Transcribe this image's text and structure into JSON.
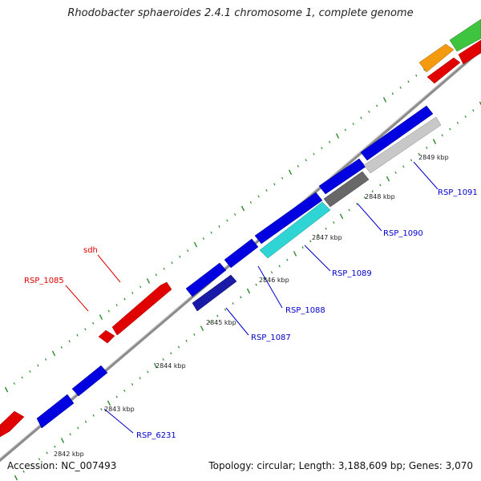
{
  "title": "Rhodobacter sphaeroides 2.4.1 chromosome 1, complete genome",
  "accession": "Accession: NC_007493",
  "summary": "Topology: circular; Length: 3,188,609 bp; Genes: 3,070",
  "colors": {
    "forward_gene": "#0000e0",
    "reverse_gene": "#e00000",
    "label_forward": "#0000cc",
    "label_reverse": "#dd0000",
    "backbone": "#8c8c8c",
    "tick": "#2a8a2a"
  },
  "scale_ticks": [
    "2842 kbp",
    "2843 kbp",
    "2844 kbp",
    "2845 kbp",
    "2846 kbp",
    "2847 kbp",
    "2848 kbp",
    "2849 kbp"
  ],
  "gene_labels": [
    {
      "id": "rsp_6231",
      "text": "RSP_6231",
      "strand": "forward"
    },
    {
      "id": "rsp_1087",
      "text": "RSP_1087",
      "strand": "forward"
    },
    {
      "id": "rsp_1088",
      "text": "RSP_1088",
      "strand": "forward"
    },
    {
      "id": "rsp_1089",
      "text": "RSP_1089",
      "strand": "forward"
    },
    {
      "id": "rsp_1090",
      "text": "RSP_1090",
      "strand": "forward"
    },
    {
      "id": "rsp_1091",
      "text": "RSP_1091",
      "strand": "forward"
    },
    {
      "id": "rsp_1085",
      "text": "RSP_1085",
      "strand": "reverse"
    },
    {
      "id": "sdh",
      "text": "sdh",
      "strand": "reverse"
    }
  ]
}
